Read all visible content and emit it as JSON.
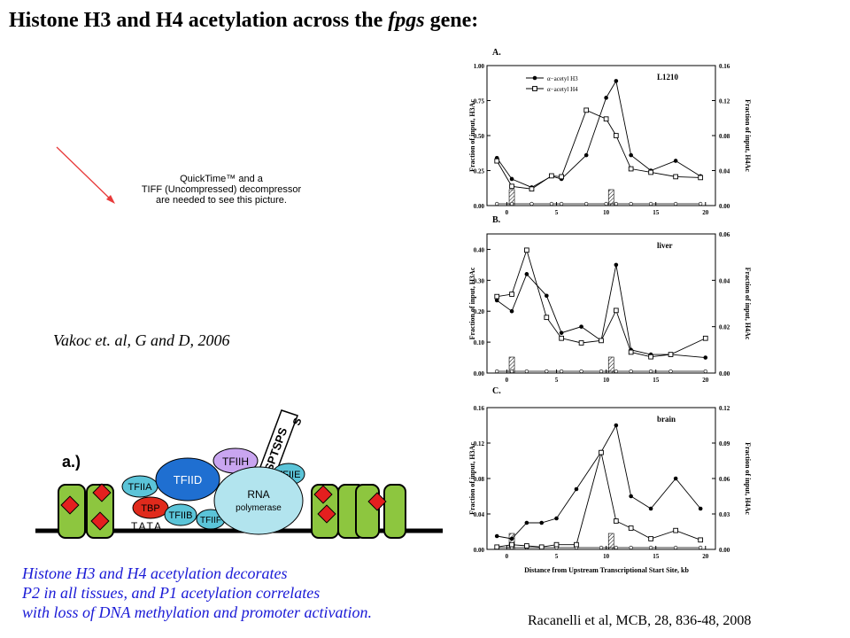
{
  "title": {
    "prefix": "Histone H3 and H4 acetylation across the ",
    "gene": "fpgs",
    "suffix": " gene:"
  },
  "quicktime": {
    "line1": "QuickTime™ and a",
    "line2": "TIFF (Uncompressed) decompressor",
    "line3": "are needed to see this picture."
  },
  "citation_left": "Vakoc et. al, G and D, 2006",
  "citation_right": "Racanelli et al, MCB, 28, 836-48, 2008",
  "caption": {
    "line1": "Histone H3 and H4 acetylation decorates",
    "line2": "P2 in all tissues, and P1 acetylation correlates",
    "line3": "with loss of DNA methylation and promoter activation."
  },
  "diagram": {
    "panel_label": "a.)",
    "factors": {
      "tfiid": "TFIID",
      "tfiih": "TFIIH",
      "tfiia": "TFIIA",
      "tbp": "TBP",
      "tfiib": "TFIIB",
      "tfiie": "TFIIE",
      "tfiif": "TFIIF",
      "rnapol1": "RNA",
      "rnapol2": "polymerase",
      "tata": "TATA",
      "ctd": "YSPTSPS",
      "ctd_tail": "S"
    }
  },
  "chart_data": [
    {
      "type": "line",
      "panel": "A.",
      "tissue": "L1210",
      "xlabel": "Distance from Upstream Transcriptional Start Site, kb",
      "ylabel_left": "Fraction of input, H3Ac",
      "ylabel_right": "Fraction of input, H4Ac",
      "xlim": [
        -2,
        21
      ],
      "xticks": [
        0,
        5,
        10,
        15,
        20
      ],
      "ylim_left": [
        0,
        1.0
      ],
      "yticks_left": [
        "0.00",
        "0.25",
        "0.50",
        "0.75",
        "1.00"
      ],
      "ylim_right": [
        0,
        0.16
      ],
      "yticks_right": [
        "0.00",
        "0.04",
        "0.08",
        "0.12",
        "0.16"
      ],
      "legend": [
        "α−acetyl H3",
        "α−acetyl H4"
      ],
      "x": [
        -1,
        0.5,
        2.5,
        4.5,
        5.5,
        8,
        10,
        11,
        12.5,
        14.5,
        17,
        19.5
      ],
      "series": [
        {
          "name": "α−acetyl H3",
          "marker": "filled-circle",
          "axis": "left",
          "values": [
            0.34,
            0.19,
            0.13,
            0.21,
            0.19,
            0.36,
            0.77,
            0.89,
            0.36,
            0.25,
            0.32,
            0.21
          ]
        },
        {
          "name": "α−acetyl H4",
          "marker": "open-square",
          "axis": "right",
          "values": [
            0.051,
            0.022,
            0.019,
            0.034,
            0.033,
            0.109,
            0.099,
            0.08,
            0.042,
            0.038,
            0.033,
            0.032
          ]
        }
      ],
      "control_bars_x": [
        0.5,
        10.5
      ]
    },
    {
      "type": "line",
      "panel": "B.",
      "tissue": "liver",
      "ylim_left": [
        0,
        0.45
      ],
      "yticks_left": [
        "0.00",
        "0.10",
        "0.20",
        "0.30",
        "0.40"
      ],
      "ylim_right": [
        0,
        0.06
      ],
      "yticks_right": [
        "0.00",
        "0.02",
        "0.04",
        "0.06"
      ],
      "xticks": [
        0,
        5,
        10,
        15,
        20
      ],
      "x": [
        -1,
        0.5,
        2,
        4,
        5.5,
        7.5,
        9.5,
        11,
        12.5,
        14.5,
        16.5,
        20
      ],
      "series": [
        {
          "name": "α−acetyl H3",
          "marker": "filled-circle",
          "axis": "left",
          "values": [
            0.235,
            0.2,
            0.32,
            0.25,
            0.13,
            0.15,
            0.105,
            0.35,
            0.075,
            0.06,
            0.06,
            0.05
          ]
        },
        {
          "name": "α−acetyl H4",
          "marker": "open-square",
          "axis": "right",
          "values": [
            0.033,
            0.034,
            0.053,
            0.024,
            0.015,
            0.013,
            0.014,
            0.027,
            0.009,
            0.007,
            0.008,
            0.015
          ]
        }
      ],
      "control_bars_x": [
        0.5,
        10.5
      ]
    },
    {
      "type": "line",
      "panel": "C.",
      "tissue": "brain",
      "ylim_left": [
        0,
        0.16
      ],
      "yticks_left": [
        "0.00",
        "0.04",
        "0.08",
        "0.12",
        "0.16"
      ],
      "ylim_right": [
        0,
        0.12
      ],
      "yticks_right": [
        "0.00",
        "0.03",
        "0.06",
        "0.09",
        "0.12"
      ],
      "xticks": [
        0,
        5,
        10,
        15,
        20
      ],
      "x": [
        -1,
        0.5,
        2,
        3.5,
        5,
        7,
        9.5,
        11,
        12.5,
        14.5,
        17,
        19.5
      ],
      "series": [
        {
          "name": "α−acetyl H3",
          "marker": "filled-circle",
          "axis": "left",
          "values": [
            0.015,
            0.012,
            0.03,
            0.03,
            0.035,
            0.068,
            0.11,
            0.14,
            0.06,
            0.046,
            0.08,
            0.046
          ]
        },
        {
          "name": "α−acetyl H4",
          "marker": "open-square",
          "axis": "right",
          "values": [
            0.002,
            0.004,
            0.003,
            0.002,
            0.004,
            0.004,
            0.082,
            0.024,
            0.018,
            0.009,
            0.016,
            0.008
          ]
        }
      ],
      "control_bars_x": [
        0.5,
        10.5
      ]
    }
  ]
}
